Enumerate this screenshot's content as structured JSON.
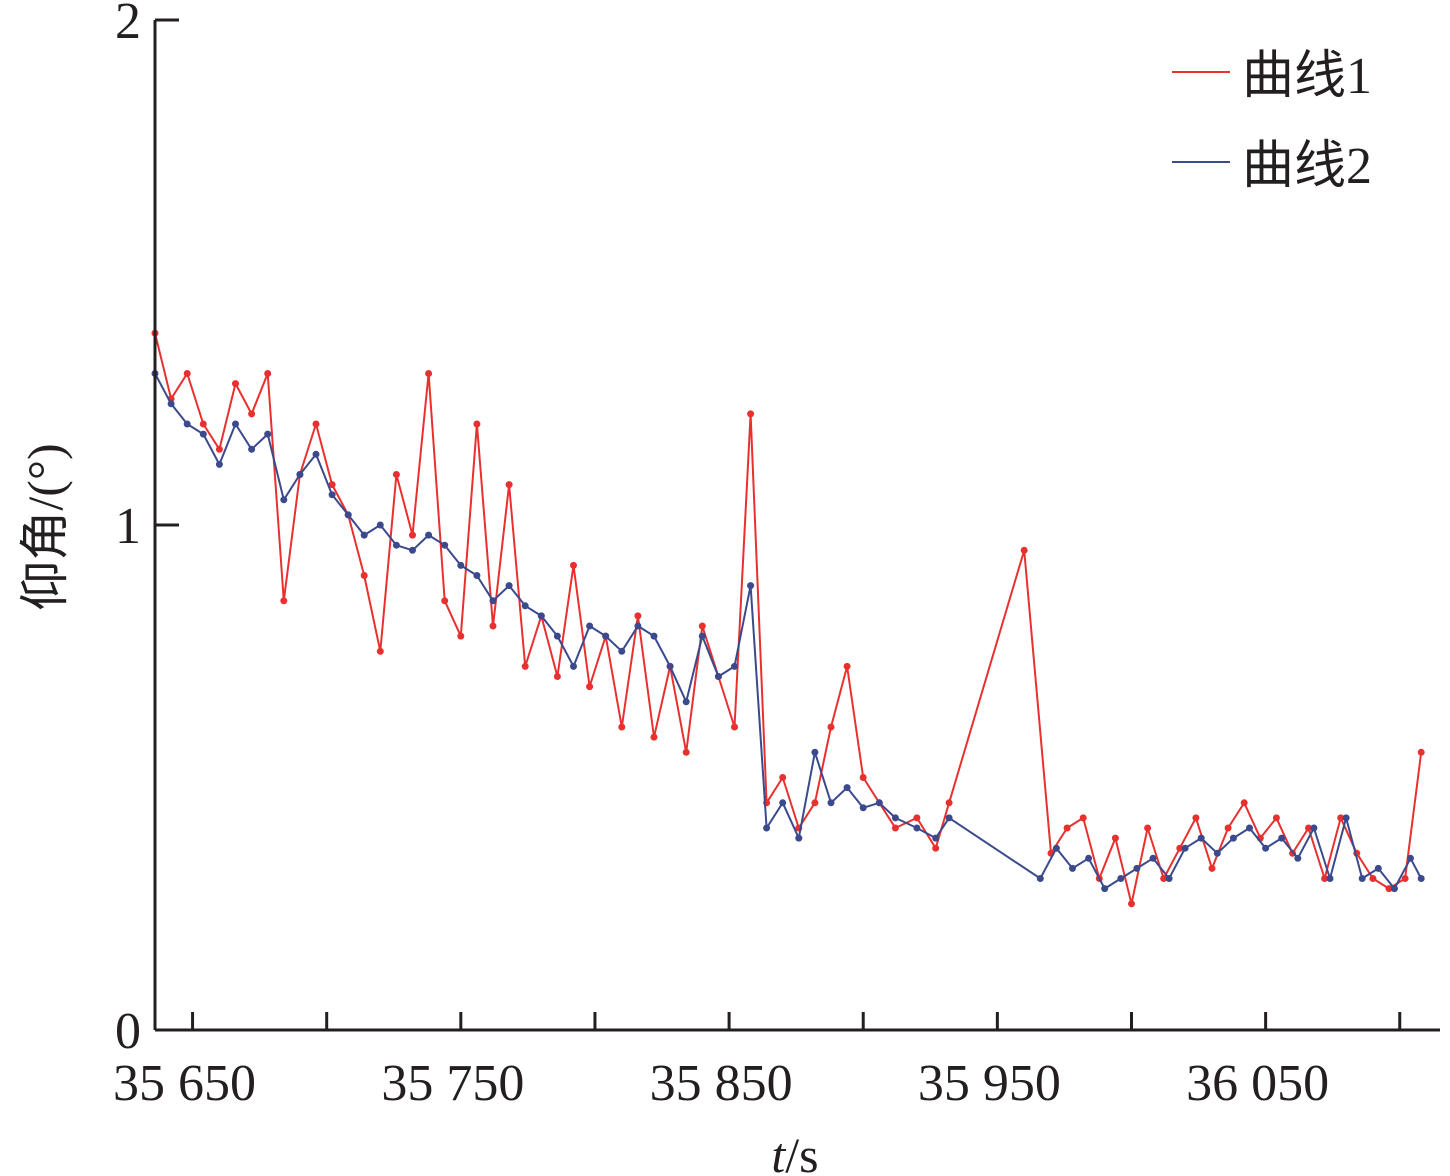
{
  "chart_data": {
    "type": "line",
    "xlabel_italic": "t",
    "xlabel_rest": "/s",
    "ylabel": "仰角/(°)",
    "xlim": [
      35636,
      36115
    ],
    "ylim": [
      0,
      2
    ],
    "x_ticks": [
      35650,
      35700,
      35750,
      35800,
      35850,
      35900,
      35950,
      36000,
      36050,
      36100
    ],
    "x_tick_labels": [
      "35 650",
      "35 750",
      "35 850",
      "35 950",
      "36 050"
    ],
    "x_tick_label_values": [
      35650,
      35750,
      35850,
      35950,
      36050
    ],
    "y_ticks": [
      0,
      1,
      2
    ],
    "y_tick_labels": [
      "0",
      "1",
      "2"
    ],
    "grid": false,
    "legend_position": "top-right",
    "series": [
      {
        "name": "曲线1",
        "color": "#e8312f",
        "x": [
          35636,
          35642,
          35648,
          35654,
          35660,
          35666,
          35672,
          35678,
          35684,
          35690,
          35696,
          35702,
          35708,
          35714,
          35720,
          35726,
          35732,
          35738,
          35744,
          35750,
          35756,
          35762,
          35768,
          35774,
          35780,
          35786,
          35792,
          35798,
          35804,
          35810,
          35816,
          35822,
          35828,
          35834,
          35840,
          35846,
          35852,
          35858,
          35864,
          35870,
          35876,
          35882,
          35888,
          35894,
          35900,
          35906,
          35912,
          35920,
          35927,
          35932,
          35960,
          35970,
          35976,
          35982,
          35988,
          35994,
          36000,
          36006,
          36012,
          36018,
          36024,
          36030,
          36036,
          36042,
          36048,
          36054,
          36060,
          36066,
          36072,
          36078,
          36084,
          36090,
          36096,
          36102,
          36108
        ],
        "values": [
          1.38,
          1.25,
          1.3,
          1.2,
          1.15,
          1.28,
          1.22,
          1.3,
          0.85,
          1.1,
          1.2,
          1.08,
          1.02,
          0.9,
          0.75,
          1.1,
          0.98,
          1.3,
          0.85,
          0.78,
          1.2,
          0.8,
          1.08,
          0.72,
          0.82,
          0.7,
          0.92,
          0.68,
          0.78,
          0.6,
          0.82,
          0.58,
          0.72,
          0.55,
          0.8,
          0.7,
          0.6,
          1.22,
          0.45,
          0.5,
          0.4,
          0.45,
          0.6,
          0.72,
          0.5,
          0.45,
          0.4,
          0.42,
          0.36,
          0.45,
          0.95,
          0.35,
          0.4,
          0.42,
          0.3,
          0.38,
          0.25,
          0.4,
          0.3,
          0.36,
          0.42,
          0.32,
          0.4,
          0.45,
          0.38,
          0.42,
          0.35,
          0.4,
          0.3,
          0.42,
          0.35,
          0.3,
          0.28,
          0.3,
          0.55
        ]
      },
      {
        "name": "曲线2",
        "color": "#3a4a8c",
        "x": [
          35636,
          35642,
          35648,
          35654,
          35660,
          35666,
          35672,
          35678,
          35684,
          35690,
          35696,
          35702,
          35708,
          35714,
          35720,
          35726,
          35732,
          35738,
          35744,
          35750,
          35756,
          35762,
          35768,
          35774,
          35780,
          35786,
          35792,
          35798,
          35804,
          35810,
          35816,
          35822,
          35828,
          35834,
          35840,
          35846,
          35852,
          35858,
          35864,
          35870,
          35876,
          35882,
          35888,
          35894,
          35900,
          35906,
          35912,
          35920,
          35927,
          35932,
          35966,
          35972,
          35978,
          35984,
          35990,
          35996,
          36002,
          36008,
          36014,
          36020,
          36026,
          36032,
          36038,
          36044,
          36050,
          36056,
          36062,
          36068,
          36074,
          36080,
          36086,
          36092,
          36098,
          36104,
          36108
        ],
        "values": [
          1.3,
          1.24,
          1.2,
          1.18,
          1.12,
          1.2,
          1.15,
          1.18,
          1.05,
          1.1,
          1.14,
          1.06,
          1.02,
          0.98,
          1.0,
          0.96,
          0.95,
          0.98,
          0.96,
          0.92,
          0.9,
          0.85,
          0.88,
          0.84,
          0.82,
          0.78,
          0.72,
          0.8,
          0.78,
          0.75,
          0.8,
          0.78,
          0.72,
          0.65,
          0.78,
          0.7,
          0.72,
          0.88,
          0.4,
          0.45,
          0.38,
          0.55,
          0.45,
          0.48,
          0.44,
          0.45,
          0.42,
          0.4,
          0.38,
          0.42,
          0.3,
          0.36,
          0.32,
          0.34,
          0.28,
          0.3,
          0.32,
          0.34,
          0.3,
          0.36,
          0.38,
          0.35,
          0.38,
          0.4,
          0.36,
          0.38,
          0.34,
          0.4,
          0.3,
          0.42,
          0.3,
          0.32,
          0.28,
          0.34,
          0.3
        ]
      }
    ]
  }
}
